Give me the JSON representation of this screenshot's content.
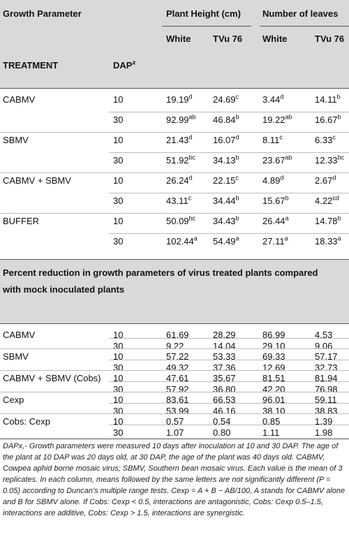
{
  "header": {
    "growth_parameter": "Growth Parameter",
    "plant_height": "Plant Height (cm)",
    "number_of_leaves": "Number of leaves",
    "white": "White",
    "tvu76": "TVu 76",
    "treatment": "TREATMENT",
    "dap": "DAP",
    "dap_sup": "x"
  },
  "section1": [
    {
      "treatment": "CABMV",
      "rows": [
        {
          "dap": "10",
          "ph_w": "19.19",
          "ph_w_s": "d",
          "ph_t": "24.69",
          "ph_t_s": "c",
          "nl_w": "3.44",
          "nl_w_s": "d",
          "nl_t": "14.11",
          "nl_t_s": "b"
        },
        {
          "dap": "30",
          "ph_w": "92.99",
          "ph_w_s": "ab",
          "ph_t": "46.84",
          "ph_t_s": "b",
          "nl_w": "19.22",
          "nl_w_s": "ab",
          "nl_t": "16.67",
          "nl_t_s": "b"
        }
      ]
    },
    {
      "treatment": "SBMV",
      "rows": [
        {
          "dap": "10",
          "ph_w": "21.43",
          "ph_w_s": "d",
          "ph_t": "16.07",
          "ph_t_s": "d",
          "nl_w": "8.11",
          "nl_w_s": "c",
          "nl_t": "6.33",
          "nl_t_s": "c"
        },
        {
          "dap": "30",
          "ph_w": "51.92",
          "ph_w_s": "bc",
          "ph_t": "34.13",
          "ph_t_s": "b",
          "nl_w": "23.67",
          "nl_w_s": "ab",
          "nl_t": "12.33",
          "nl_t_s": "bc"
        }
      ]
    },
    {
      "treatment": "CABMV + SBMV",
      "rows": [
        {
          "dap": "10",
          "ph_w": "26.24",
          "ph_w_s": "d",
          "ph_t": "22.15",
          "ph_t_s": "c",
          "nl_w": "4.89",
          "nl_w_s": "d",
          "nl_t": "2.67",
          "nl_t_s": "d"
        },
        {
          "dap": "30",
          "ph_w": "43.11",
          "ph_w_s": "c",
          "ph_t": "34.44",
          "ph_t_s": "b",
          "nl_w": "15.67",
          "nl_w_s": "b",
          "nl_t": "4.22",
          "nl_t_s": "cd"
        }
      ]
    },
    {
      "treatment": "BUFFER",
      "rows": [
        {
          "dap": "10",
          "ph_w": "50.09",
          "ph_w_s": "bc",
          "ph_t": "34.43",
          "ph_t_s": "b",
          "nl_w": "26.44",
          "nl_w_s": "a",
          "nl_t": "14.78",
          "nl_t_s": "b"
        },
        {
          "dap": "30",
          "ph_w": "102.44",
          "ph_w_s": "a",
          "ph_t": "54.49",
          "ph_t_s": "a",
          "nl_w": "27.11",
          "nl_w_s": "a",
          "nl_t": "18.33",
          "nl_t_s": "a"
        }
      ]
    }
  ],
  "section2_title_line1": "Percent reduction in growth parameters of virus treated plants compared",
  "section2_title_line2": "with mock inoculated plants",
  "section2": [
    {
      "treatment": "CABMV",
      "rows": [
        {
          "dap": "10",
          "ph_w": "61.69",
          "ph_t": "28.29",
          "nl_w": "86.99",
          "nl_t": "4.53"
        },
        {
          "dap": "30",
          "ph_w": "9.22",
          "ph_t": "14.04",
          "nl_w": "29.10",
          "nl_t": "9.06"
        }
      ]
    },
    {
      "treatment": "SBMV",
      "rows": [
        {
          "dap": "10",
          "ph_w": "57.22",
          "ph_t": "53.33",
          "nl_w": "69.33",
          "nl_t": "57.17"
        },
        {
          "dap": "30",
          "ph_w": "49.32",
          "ph_t": "37.36",
          "nl_w": "12.69",
          "nl_t": "32.73"
        }
      ]
    },
    {
      "treatment": "CABMV + SBMV (Cobs)",
      "rows": [
        {
          "dap": "10",
          "ph_w": "47.61",
          "ph_t": "35.67",
          "nl_w": "81.51",
          "nl_t": "81.94"
        },
        {
          "dap": "30",
          "ph_w": "57.92",
          "ph_t": "36.80",
          "nl_w": "42.20",
          "nl_t": "76.98"
        }
      ]
    },
    {
      "treatment": "Cexp",
      "rows": [
        {
          "dap": "10",
          "ph_w": "83.61",
          "ph_t": "66.53",
          "nl_w": "96.01",
          "nl_t": "59.11"
        },
        {
          "dap": "30",
          "ph_w": "53.99",
          "ph_t": "46.16",
          "nl_w": "38.10",
          "nl_t": "38.83"
        }
      ]
    },
    {
      "treatment": "Cobs: Cexp",
      "rows": [
        {
          "dap": "10",
          "ph_w": "0.57",
          "ph_t": "0.54",
          "nl_w": "0.85",
          "nl_t": "1.39"
        },
        {
          "dap": "30",
          "ph_w": "1.07",
          "ph_t": "0.80",
          "nl_w": "1.11",
          "nl_t": "1.98"
        }
      ]
    }
  ],
  "footnote": "DAPx,- Growth parameters were measured 10 days after inoculation at 10 and 30 DAP. The age of the plant at 10 DAP was 20 days old, at 30 DAP, the age of the plant was 40 days old. CABMV, Cowpea aphid borne mosaic virus; SBMV, Southern bean mosaic virus. Each value is the mean of 3 replicates. In each column, means followed by the same letters are not significantly different (P = 0.05) according to Duncan's multiple range tests. Cexp = A + B − AB/100, A stands for CABMV alone and B for SBMV alone. If Cobs: Cexp < 0.5, interactions are antagonistic, Cobs: Cexp 0.5–1.5, interactions are additive, Cobs: Cexp > 1.5, interactions are synergistic."
}
